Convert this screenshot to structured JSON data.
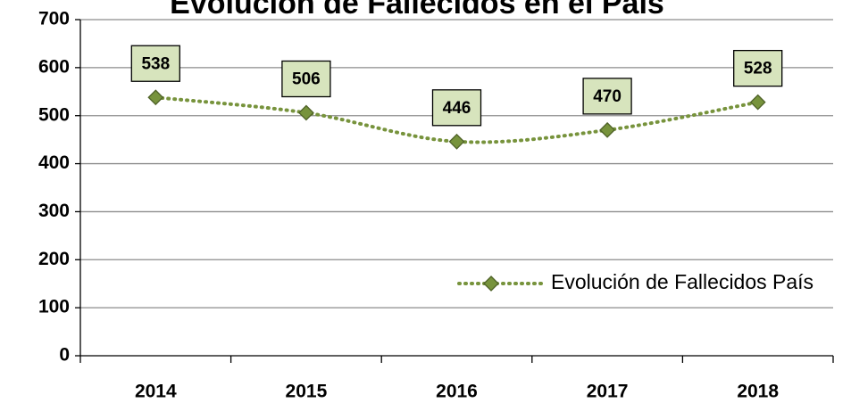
{
  "chart_data": {
    "type": "line",
    "title": "Evolución de Fallecidos en el País",
    "categories": [
      "2014",
      "2015",
      "2016",
      "2017",
      "2018"
    ],
    "series": [
      {
        "name": "Evolución de Fallecidos País",
        "color": "#77933c",
        "values": [
          538,
          506,
          446,
          470,
          528
        ]
      }
    ],
    "ylim": [
      0,
      700
    ],
    "yticks": [
      0,
      100,
      200,
      300,
      400,
      500,
      600,
      700
    ],
    "grid": true,
    "legend": "right"
  }
}
